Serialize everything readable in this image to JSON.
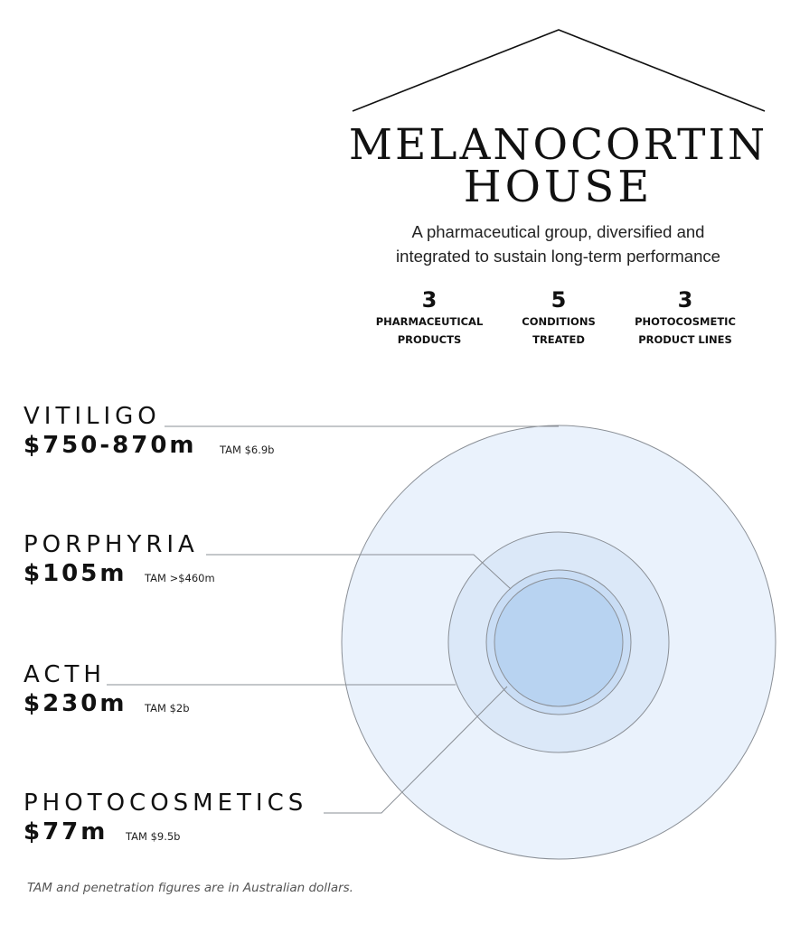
{
  "header": {
    "title_line1": "MELANOCORTIN",
    "title_line2": "HOUSE",
    "subtitle_line1": "A pharmaceutical group, diversified and",
    "subtitle_line2": "integrated to sustain long-term performance"
  },
  "stats": [
    {
      "number": "3",
      "label_line1": "PHARMACEUTICAL",
      "label_line2": "PRODUCTS"
    },
    {
      "number": "5",
      "label_line1": "CONDITIONS",
      "label_line2": "TREATED"
    },
    {
      "number": "3",
      "label_line1": "PHOTOCOSMETIC",
      "label_line2": "PRODUCT LINES"
    }
  ],
  "conditions": [
    {
      "name": "VITILIGO",
      "value": "$750-870m",
      "tam": "TAM $6.9b"
    },
    {
      "name": "PORPHYRIA",
      "value": "$105m",
      "tam": "TAM >$460m"
    },
    {
      "name": "ACTH",
      "value": "$230m",
      "tam": "TAM $2b"
    },
    {
      "name": "PHOTOCOSMETICS",
      "value": "$77m",
      "tam": "TAM $9.5b"
    }
  ],
  "colors": {
    "ring_outer": "#eaf2fc",
    "ring_mid": "#dbe8f8",
    "ring_inner": "#c9ddf5",
    "ring_core": "#b8d3f1",
    "stroke": "#8a8f96"
  },
  "footnote": "TAM and penetration figures are in Australian dollars."
}
